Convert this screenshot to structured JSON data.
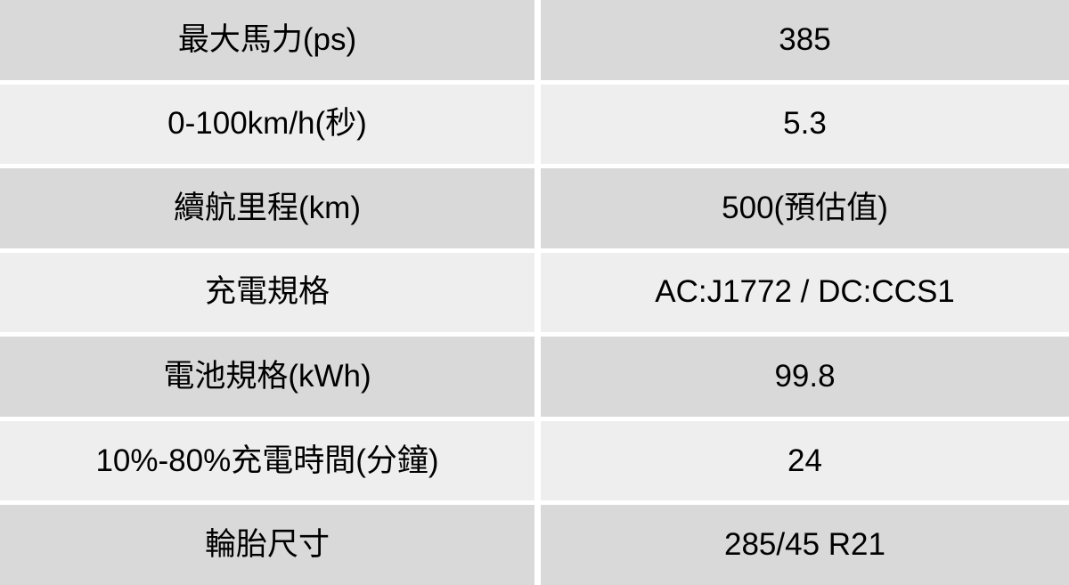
{
  "colors": {
    "row_odd_bg": "#d9d9d9",
    "row_even_bg": "#eeeeee",
    "divider": "#ffffff",
    "text": "#000000"
  },
  "table": {
    "rows": [
      {
        "label": "最大馬力(ps)",
        "value": "385"
      },
      {
        "label": "0-100km/h(秒)",
        "value": "5.3"
      },
      {
        "label": "續航里程(km)",
        "value": "500(預估值)"
      },
      {
        "label": "充電規格",
        "value": "AC:J1772 / DC:CCS1"
      },
      {
        "label": "電池規格(kWh)",
        "value": "99.8"
      },
      {
        "label": "10%-80%充電時間(分鐘)",
        "value": "24"
      },
      {
        "label": "輪胎尺寸",
        "value": "285/45 R21"
      }
    ]
  },
  "chart_data": {
    "type": "table",
    "rows": [
      [
        "最大馬力(ps)",
        "385"
      ],
      [
        "0-100km/h(秒)",
        "5.3"
      ],
      [
        "續航里程(km)",
        "500(預估值)"
      ],
      [
        "充電規格",
        "AC:J1772 / DC:CCS1"
      ],
      [
        "電池規格(kWh)",
        "99.8"
      ],
      [
        "10%-80%充電時間(分鐘)",
        "24"
      ],
      [
        "輪胎尺寸",
        "285/45 R21"
      ]
    ],
    "title": "",
    "layout": {
      "columns": 2,
      "row_count": 7,
      "grid": "white gaps between cells, no outer border",
      "row_striping": [
        "#d9d9d9",
        "#eeeeee"
      ]
    }
  }
}
